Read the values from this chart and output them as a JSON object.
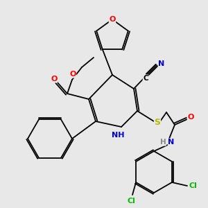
{
  "background_color": "#e8e8e8",
  "figsize": [
    3.0,
    3.0
  ],
  "dpi": 100,
  "bond_color": "#000000",
  "atom_colors": {
    "O": "#ff0000",
    "N": "#0000cc",
    "S": "#bbbb00",
    "Cl": "#00bb00",
    "C": "#000000"
  },
  "lw": 1.3,
  "fs": 7.5
}
